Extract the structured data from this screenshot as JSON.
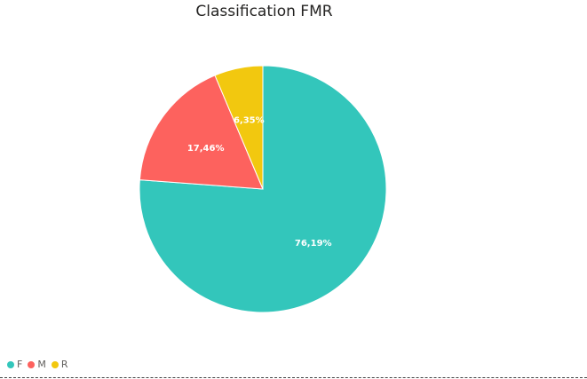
{
  "chart_data": {
    "type": "pie",
    "title": "Classification FMR",
    "categories": [
      "F",
      "M",
      "R"
    ],
    "values": [
      76.19,
      17.46,
      6.35
    ],
    "data_labels": [
      "76,19%",
      "17,46%",
      "6,35%"
    ],
    "colors": [
      "#33C6BB",
      "#FD625E",
      "#F2C80F"
    ],
    "legend_position": "bottom-left"
  }
}
